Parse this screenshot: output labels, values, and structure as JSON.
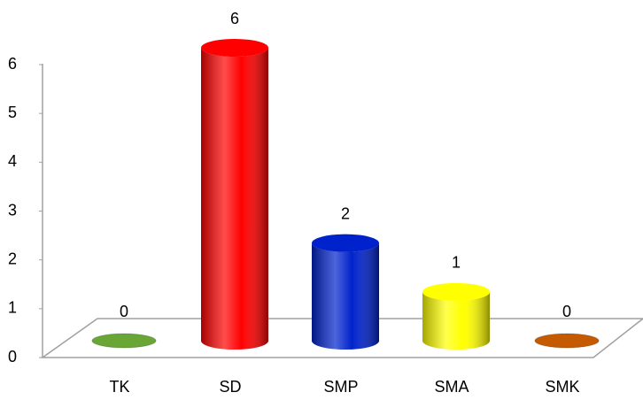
{
  "chart_data": {
    "type": "bar3d",
    "categories": [
      "TK",
      "SD",
      "SMP",
      "SMA",
      "SMK"
    ],
    "values": [
      0,
      6,
      2,
      1,
      0
    ],
    "colors": [
      "#6aa636",
      "#ff0000",
      "#0022cc",
      "#ffff00",
      "#c65a00"
    ],
    "ylim": [
      0,
      6
    ],
    "yticks": [
      0,
      1,
      2,
      3,
      4,
      5,
      6
    ]
  }
}
